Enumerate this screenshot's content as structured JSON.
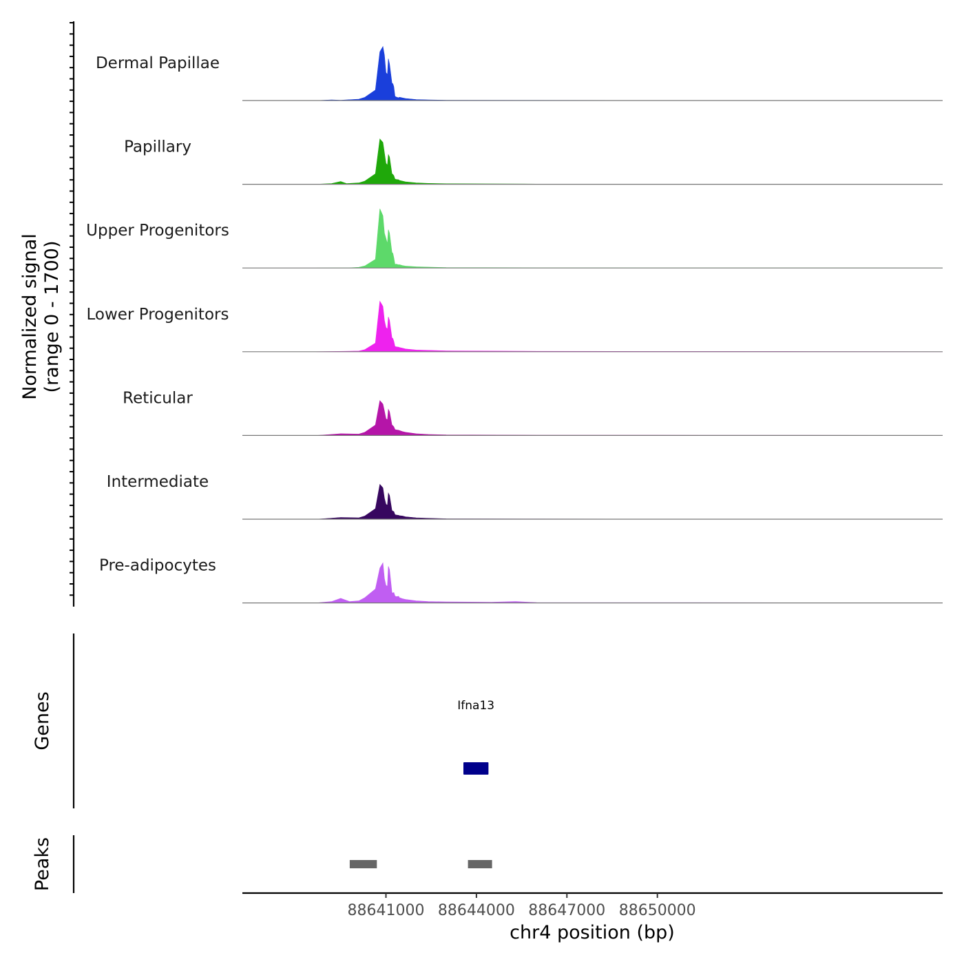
{
  "chart_data": {
    "type": "area",
    "title": "",
    "y_axis_title": "Normalized signal",
    "y_axis_subtitle": "(range 0 - 1700)",
    "ylim": [
      0,
      1700
    ],
    "xlabel": "chr4 position (bp)",
    "xlim": [
      88636240,
      88659460
    ],
    "x_ticks": [
      88641000,
      88644000,
      88647000,
      88650000
    ],
    "tick_labels": [
      "88641000",
      "88644000",
      "88647000",
      "88650000"
    ],
    "tracks": [
      {
        "name": "Dermal Papillae",
        "color": "#1a3fdb",
        "x": [
          88638700,
          88639200,
          88639500,
          88640100,
          88640300,
          88640650,
          88640800,
          88640900,
          88640950,
          88641000,
          88641050,
          88641080,
          88641120,
          88641200,
          88641230,
          88641260,
          88641300,
          88641340,
          88641420,
          88641450,
          88641550,
          88641650,
          88642000,
          88642400,
          88643000,
          88646000,
          88650000,
          88655000,
          88659460
        ],
        "values": [
          0,
          20,
          8,
          40,
          90,
          300,
          1400,
          1550,
          1300,
          800,
          750,
          1200,
          1050,
          500,
          480,
          400,
          120,
          100,
          80,
          95,
          75,
          60,
          30,
          20,
          10,
          6,
          4,
          3,
          0
        ]
      },
      {
        "name": "Papillary",
        "color": "#1fa80a",
        "x": [
          88638700,
          88639200,
          88639500,
          88639700,
          88640100,
          88640300,
          88640650,
          88640800,
          88640900,
          88640950,
          88641000,
          88641050,
          88641080,
          88641120,
          88641200,
          88641230,
          88641260,
          88641300,
          88641340,
          88641420,
          88641450,
          88641550,
          88641650,
          88642000,
          88642400,
          88643000,
          88646000,
          88650000,
          88655000,
          88659460
        ],
        "values": [
          0,
          20,
          80,
          20,
          40,
          90,
          300,
          1300,
          1200,
          900,
          600,
          550,
          850,
          780,
          300,
          280,
          250,
          150,
          140,
          130,
          110,
          90,
          70,
          40,
          25,
          15,
          6,
          4,
          3,
          0
        ]
      },
      {
        "name": "Upper Progenitors",
        "color": "#5dd96a",
        "x": [
          88638700,
          88639800,
          88640100,
          88640300,
          88640650,
          88640800,
          88640900,
          88640950,
          88641000,
          88641050,
          88641080,
          88641120,
          88641200,
          88641230,
          88641260,
          88641300,
          88641340,
          88641420,
          88641450,
          88641550,
          88641650,
          88642000,
          88642400,
          88643000,
          88646000,
          88650000,
          88655000,
          88659460
        ],
        "values": [
          0,
          5,
          20,
          60,
          250,
          1700,
          1500,
          1000,
          850,
          700,
          1100,
          1000,
          450,
          420,
          300,
          100,
          110,
          90,
          95,
          70,
          55,
          35,
          25,
          12,
          6,
          4,
          3,
          0
        ]
      },
      {
        "name": "Lower Progenitors",
        "color": "#ee22ee",
        "x": [
          88638700,
          88640100,
          88640300,
          88640650,
          88640800,
          88640900,
          88640950,
          88641000,
          88641050,
          88641080,
          88641120,
          88641200,
          88641230,
          88641260,
          88641300,
          88641340,
          88641420,
          88641450,
          88641550,
          88641650,
          88642000,
          88642400,
          88643000,
          88646000,
          88650000,
          88655000,
          88659460
        ],
        "values": [
          0,
          20,
          60,
          250,
          1450,
          1300,
          900,
          700,
          650,
          1000,
          900,
          400,
          380,
          300,
          150,
          140,
          130,
          120,
          100,
          80,
          50,
          40,
          25,
          12,
          8,
          5,
          0
        ]
      },
      {
        "name": "Reticular",
        "color": "#b515a8",
        "x": [
          88638700,
          88639200,
          88639500,
          88640100,
          88640300,
          88640650,
          88640800,
          88640900,
          88640950,
          88641000,
          88641050,
          88641080,
          88641120,
          88641200,
          88641230,
          88641260,
          88641300,
          88641340,
          88641420,
          88641450,
          88641550,
          88641650,
          88642000,
          88642400,
          88643000,
          88646000,
          88650000,
          88655000,
          88659460
        ],
        "values": [
          0,
          30,
          50,
          40,
          90,
          300,
          1000,
          900,
          700,
          480,
          450,
          750,
          680,
          300,
          280,
          250,
          170,
          160,
          150,
          140,
          110,
          90,
          50,
          30,
          15,
          8,
          5,
          3,
          0
        ]
      },
      {
        "name": "Intermediate",
        "color": "#37075f",
        "x": [
          88638700,
          88639200,
          88639500,
          88640100,
          88640300,
          88640650,
          88640800,
          88640900,
          88640950,
          88641000,
          88641050,
          88641080,
          88641120,
          88641200,
          88641230,
          88641260,
          88641300,
          88641340,
          88641420,
          88641450,
          88641550,
          88641650,
          88642000,
          88642400,
          88643000,
          88646000,
          88650000,
          88655000,
          88659460
        ],
        "values": [
          0,
          30,
          50,
          40,
          90,
          300,
          1000,
          900,
          600,
          430,
          400,
          750,
          680,
          250,
          230,
          220,
          130,
          120,
          110,
          100,
          90,
          70,
          40,
          25,
          12,
          6,
          4,
          3,
          0
        ]
      },
      {
        "name": "Pre-adipocytes",
        "color": "#c05ef2",
        "x": [
          88638700,
          88639200,
          88639500,
          88639800,
          88640100,
          88640300,
          88640650,
          88640800,
          88640900,
          88640950,
          88641000,
          88641050,
          88641080,
          88641120,
          88641200,
          88641230,
          88641260,
          88641300,
          88641340,
          88641420,
          88641450,
          88641550,
          88641650,
          88642000,
          88642400,
          88643000,
          88644500,
          88645300,
          88646000,
          88650000,
          88655000,
          88659460
        ],
        "values": [
          0,
          40,
          130,
          40,
          60,
          150,
          400,
          1000,
          1150,
          700,
          500,
          480,
          1050,
          950,
          300,
          280,
          300,
          200,
          180,
          190,
          150,
          120,
          100,
          60,
          40,
          30,
          20,
          40,
          10,
          8,
          5,
          0
        ]
      }
    ],
    "genes_label": "Genes",
    "genes": [
      {
        "name": "Ifna13",
        "start": 88643570,
        "end": 88644400
      }
    ],
    "peaks_label": "Peaks",
    "peaks": [
      {
        "start": 88639800,
        "end": 88640700
      },
      {
        "start": 88643720,
        "end": 88644520
      }
    ]
  }
}
